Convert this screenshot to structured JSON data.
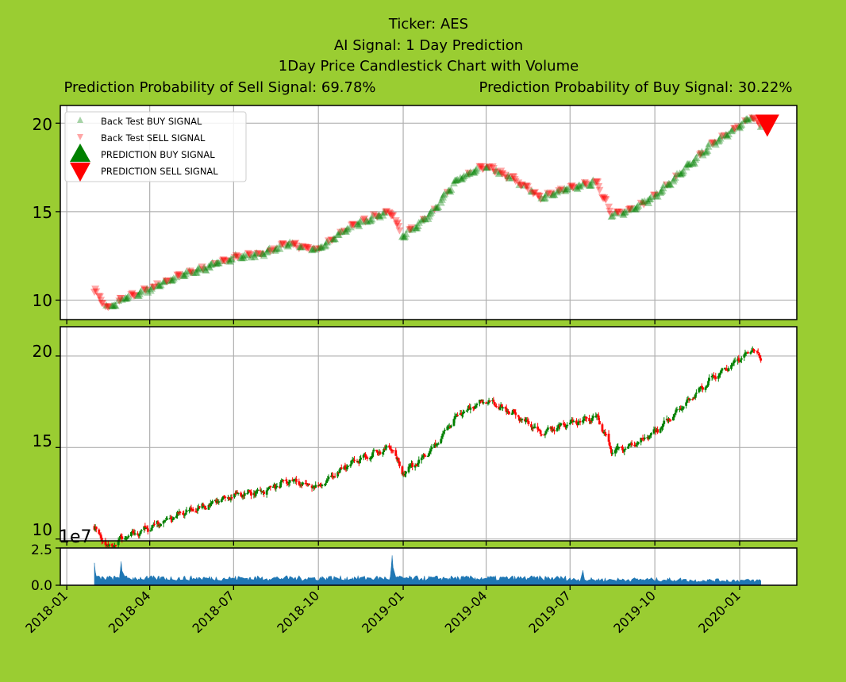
{
  "title": {
    "line1": "Ticker: AES",
    "line2": "AI Signal: 1 Day Prediction",
    "line3": "1Day Price Candlestick Chart with Volume",
    "sell_prob": "Prediction Probability of Sell Signal: 69.78%",
    "buy_prob": "Prediction Probability of Buy Signal: 30.22%"
  },
  "colors": {
    "background": "#9acd32",
    "buy": "#008000",
    "sell": "#ff0000",
    "volume": "#1f77b4",
    "grid": "#b0b0b0"
  },
  "chart_data": [
    {
      "type": "scatter",
      "panel": "signals",
      "legend": [
        "Back Test BUY SIGNAL",
        "Back Test SELL SIGNAL",
        "PREDICTION BUY SIGNAL",
        "PREDICTION SELL SIGNAL"
      ],
      "legend_position": "upper-left",
      "y_ticks": [
        "10",
        "15",
        "20"
      ],
      "ylim": [
        8.9,
        21.0
      ],
      "price_path_monthly": [
        [
          "2018-01-31",
          10.6
        ],
        [
          "2018-02-15",
          9.5
        ],
        [
          "2018-03-01",
          10.0
        ],
        [
          "2018-03-31",
          10.6
        ],
        [
          "2018-04-30",
          11.3
        ],
        [
          "2018-05-31",
          11.8
        ],
        [
          "2018-06-30",
          12.4
        ],
        [
          "2018-07-31",
          12.6
        ],
        [
          "2018-08-31",
          13.2
        ],
        [
          "2018-09-30",
          12.8
        ],
        [
          "2018-10-31",
          14.0
        ],
        [
          "2018-11-30",
          14.7
        ],
        [
          "2018-12-20",
          15.0
        ],
        [
          "2018-12-31",
          13.6
        ],
        [
          "2019-01-31",
          14.8
        ],
        [
          "2019-02-28",
          16.7
        ],
        [
          "2019-03-31",
          17.6
        ],
        [
          "2019-04-30",
          16.9
        ],
        [
          "2019-05-31",
          15.8
        ],
        [
          "2019-06-30",
          16.3
        ],
        [
          "2019-07-31",
          16.7
        ],
        [
          "2019-08-15",
          14.8
        ],
        [
          "2019-08-31",
          15.0
        ],
        [
          "2019-09-30",
          15.8
        ],
        [
          "2019-10-31",
          17.2
        ],
        [
          "2019-11-30",
          18.7
        ],
        [
          "2019-12-31",
          19.8
        ],
        [
          "2020-01-15",
          20.4
        ],
        [
          "2020-01-24",
          19.9
        ]
      ],
      "prediction_signal": {
        "date": "2020-01-31",
        "value": 19.9,
        "type": "sell"
      }
    },
    {
      "type": "candlestick",
      "panel": "price",
      "y_ticks": [
        "10",
        "15",
        "20"
      ],
      "ylim": [
        9.9,
        21.6
      ],
      "up_color": "green",
      "down_color": "red"
    },
    {
      "type": "area",
      "panel": "volume",
      "offset_label": "1e7",
      "y_ticks": [
        "0.0",
        "2.5"
      ],
      "ylim": [
        0,
        2.5
      ],
      "typical_volume_1e7": 0.5,
      "peaks": [
        [
          "2018-01-31",
          1.5
        ],
        [
          "2018-03-01",
          1.6
        ],
        [
          "2018-12-20",
          2.0
        ],
        [
          "2019-07-15",
          1.0
        ]
      ]
    }
  ],
  "x_axis": {
    "ticks": [
      "2018-01",
      "2018-04",
      "2018-07",
      "2018-10",
      "2019-01",
      "2019-04",
      "2019-07",
      "2019-10",
      "2020-01"
    ]
  }
}
